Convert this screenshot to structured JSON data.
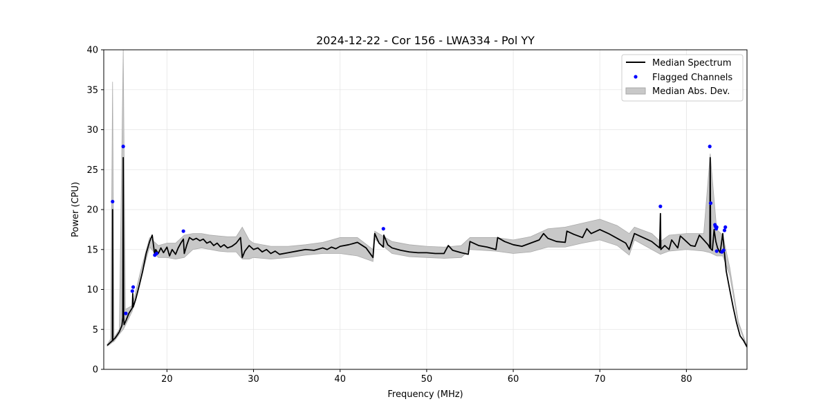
{
  "chart_data": {
    "type": "line",
    "title": "2024-12-22 - Cor 156 - LWA334 - Pol YY",
    "xlabel": "Frequency (MHz)",
    "ylabel": "Power (CPU)",
    "xlim": [
      12.7,
      87.0
    ],
    "ylim": [
      0,
      40
    ],
    "xticks": [
      20,
      30,
      40,
      50,
      60,
      70,
      80
    ],
    "yticks": [
      0,
      5,
      10,
      15,
      20,
      25,
      30,
      35,
      40
    ],
    "grid": true,
    "legend_position": "top-right",
    "colors": {
      "median": "#000000",
      "flagged": "#0000ff",
      "mad": "#c8c8c8",
      "mad_edge": "#aaaaaa"
    },
    "legend": [
      {
        "label": "Median Spectrum",
        "kind": "line"
      },
      {
        "label": "Flagged Channels",
        "kind": "marker"
      },
      {
        "label": "Median Abs. Dev.",
        "kind": "patch"
      }
    ],
    "median_spectrum": {
      "x": [
        13.1,
        13.4,
        13.6,
        13.7,
        13.72,
        13.75,
        13.8,
        14.0,
        14.2,
        14.5,
        14.8,
        14.9,
        14.95,
        15.0,
        15.05,
        15.3,
        15.6,
        16.0,
        16.05,
        16.1,
        16.4,
        16.8,
        17.2,
        17.6,
        18.0,
        18.3,
        18.6,
        18.7,
        19.0,
        19.3,
        19.6,
        20.0,
        20.3,
        20.6,
        21.0,
        21.3,
        21.6,
        21.9,
        22.0,
        22.3,
        22.6,
        23.0,
        23.4,
        23.8,
        24.2,
        24.6,
        25.0,
        25.4,
        25.8,
        26.2,
        26.6,
        27.0,
        27.5,
        28.0,
        28.5,
        28.7,
        29.0,
        29.5,
        30.0,
        30.5,
        31.0,
        31.5,
        32.0,
        32.5,
        33.0,
        34.0,
        35.0,
        36.0,
        37.0,
        38.0,
        38.5,
        39.0,
        39.5,
        40.0,
        41.0,
        42.0,
        43.0,
        43.8,
        44.0,
        44.5,
        45.0,
        45.05,
        45.5,
        46.0,
        47.0,
        48.0,
        49.0,
        50.0,
        51.0,
        52.0,
        52.5,
        53.0,
        54.0,
        54.8,
        55.0,
        56.0,
        57.0,
        58.0,
        58.2,
        59.0,
        60.0,
        61.0,
        62.0,
        63.0,
        63.5,
        64.0,
        65.0,
        66.0,
        66.2,
        67.0,
        68.0,
        68.5,
        69.0,
        70.0,
        71.0,
        72.0,
        73.0,
        73.4,
        74.0,
        75.0,
        76.0,
        76.9,
        77.0,
        77.05,
        77.5,
        78.0,
        78.3,
        79.0,
        79.3,
        80.0,
        80.5,
        81.0,
        81.5,
        82.0,
        82.5,
        82.7,
        82.75,
        82.8,
        83.0,
        83.2,
        83.4,
        83.6,
        83.9,
        84.1,
        84.2,
        84.4,
        84.6,
        85.0,
        85.4,
        85.8,
        86.2,
        86.6,
        87.0
      ],
      "y": [
        3.0,
        3.3,
        3.5,
        3.6,
        20.0,
        3.6,
        3.7,
        3.9,
        4.2,
        4.7,
        5.5,
        6.5,
        26.5,
        6.5,
        5.6,
        6.2,
        7.0,
        7.7,
        9.5,
        7.8,
        8.8,
        10.5,
        12.3,
        14.5,
        16.0,
        16.8,
        14.2,
        15.0,
        14.5,
        15.2,
        14.6,
        15.3,
        14.2,
        15.0,
        14.4,
        15.2,
        15.8,
        16.3,
        14.5,
        15.6,
        16.5,
        16.2,
        16.4,
        16.1,
        16.3,
        15.8,
        16.0,
        15.5,
        15.8,
        15.3,
        15.6,
        15.2,
        15.4,
        15.8,
        16.5,
        14.0,
        14.8,
        15.5,
        15.0,
        15.2,
        14.7,
        15.0,
        14.5,
        14.8,
        14.4,
        14.6,
        14.8,
        15.0,
        14.9,
        15.2,
        15.0,
        15.3,
        15.1,
        15.4,
        15.6,
        15.9,
        15.2,
        14.0,
        17.0,
        15.8,
        15.3,
        16.8,
        15.6,
        15.2,
        14.9,
        14.7,
        14.6,
        14.6,
        14.5,
        14.5,
        15.5,
        14.9,
        14.6,
        14.4,
        16.0,
        15.5,
        15.3,
        15.0,
        16.5,
        16.0,
        15.6,
        15.4,
        15.8,
        16.2,
        17.0,
        16.4,
        16.0,
        15.9,
        17.3,
        16.9,
        16.5,
        17.6,
        17.0,
        17.5,
        17.0,
        16.4,
        15.8,
        15.0,
        17.0,
        16.5,
        16.0,
        15.2,
        19.5,
        15.0,
        15.5,
        15.0,
        16.2,
        15.2,
        16.7,
        16.0,
        15.5,
        15.4,
        16.8,
        16.2,
        15.6,
        15.2,
        26.5,
        15.1,
        14.9,
        17.5,
        16.0,
        15.2,
        14.6,
        16.2,
        17.0,
        14.5,
        12.3,
        10.0,
        7.8,
        5.8,
        4.2,
        3.6,
        2.8
      ]
    },
    "median_abs_dev": {
      "x": [
        13.1,
        13.5,
        13.72,
        13.9,
        14.5,
        14.95,
        15.2,
        16.0,
        17.0,
        18.0,
        19.0,
        20.0,
        21.0,
        22.0,
        23.0,
        24.0,
        25.0,
        26.0,
        27.0,
        28.0,
        28.7,
        29.5,
        30.0,
        32.0,
        34.0,
        36.0,
        38.0,
        40.0,
        42.0,
        43.8,
        44.0,
        46.0,
        48.0,
        50.0,
        52.0,
        54.0,
        55.0,
        58.0,
        60.0,
        62.0,
        64.0,
        66.0,
        68.0,
        70.0,
        72.0,
        73.4,
        74.0,
        76.0,
        77.0,
        78.0,
        80.0,
        82.0,
        82.75,
        83.5,
        84.2,
        85.0,
        86.0,
        87.0
      ],
      "upper": [
        3.1,
        3.8,
        36.0,
        4.0,
        5.0,
        40.0,
        7.5,
        8.0,
        12.5,
        16.5,
        15.5,
        15.8,
        15.8,
        16.8,
        17.0,
        17.0,
        16.8,
        16.7,
        16.6,
        16.6,
        17.8,
        16.2,
        15.8,
        15.4,
        15.4,
        15.6,
        15.9,
        16.5,
        16.5,
        15.0,
        17.3,
        16.0,
        15.6,
        15.4,
        15.3,
        15.5,
        16.5,
        16.5,
        16.2,
        16.6,
        17.6,
        17.8,
        18.3,
        18.8,
        18.0,
        17.0,
        17.8,
        17.0,
        16.0,
        16.8,
        17.0,
        17.0,
        27.0,
        17.5,
        16.8,
        12.8,
        6.0,
        2.9
      ],
      "lower": [
        2.9,
        3.2,
        3.4,
        3.5,
        4.4,
        5.0,
        5.5,
        7.3,
        11.5,
        15.3,
        14.0,
        14.0,
        13.8,
        14.0,
        15.0,
        15.2,
        15.0,
        14.8,
        14.7,
        14.7,
        13.8,
        13.8,
        14.0,
        13.8,
        14.0,
        14.3,
        14.5,
        14.5,
        14.2,
        13.5,
        16.3,
        14.5,
        14.1,
        14.0,
        13.9,
        14.0,
        15.0,
        14.8,
        14.5,
        14.7,
        15.3,
        15.3,
        15.8,
        16.2,
        15.5,
        14.3,
        16.2,
        15.0,
        14.4,
        14.8,
        15.0,
        14.8,
        14.6,
        14.2,
        14.2,
        11.8,
        5.6,
        2.7
      ]
    },
    "flagged_channels": {
      "x": [
        13.72,
        14.95,
        15.25,
        16.0,
        16.1,
        18.6,
        18.8,
        21.9,
        45.0,
        77.0,
        82.7,
        82.8,
        83.3,
        83.35,
        83.45,
        83.5,
        84.1,
        84.3,
        84.5,
        84.4,
        83.5
      ],
      "y": [
        21.0,
        27.9,
        7.0,
        9.8,
        10.3,
        14.3,
        14.5,
        17.3,
        17.6,
        20.4,
        27.9,
        20.8,
        18.1,
        17.9,
        17.6,
        17.8,
        14.7,
        14.9,
        17.8,
        17.4,
        14.8
      ]
    }
  }
}
